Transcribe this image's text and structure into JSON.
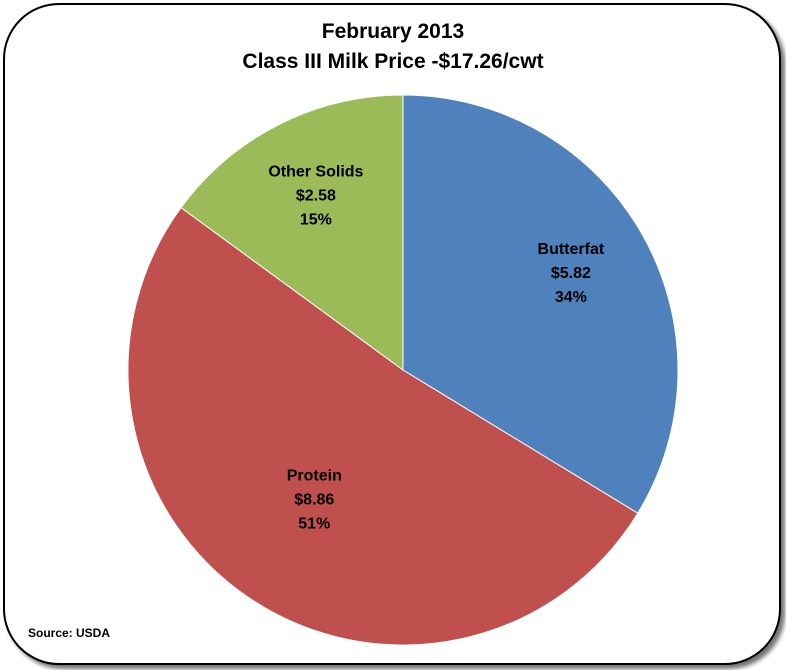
{
  "chart_data": {
    "type": "pie",
    "title": "February 2013",
    "subtitle": "Class III Milk Price -$17.26/cwt",
    "slices": [
      {
        "name": "Butterfat",
        "value": 5.82,
        "value_label": "$5.82",
        "percent_label": "34%",
        "color": "#4f81bd"
      },
      {
        "name": "Protein",
        "value": 8.86,
        "value_label": "$8.86",
        "percent_label": "51%",
        "color": "#c0504d"
      },
      {
        "name": "Other Solids",
        "value": 2.58,
        "value_label": "$2.58",
        "percent_label": "15%",
        "color": "#9bbb59"
      }
    ],
    "source": "Source: USDA"
  }
}
